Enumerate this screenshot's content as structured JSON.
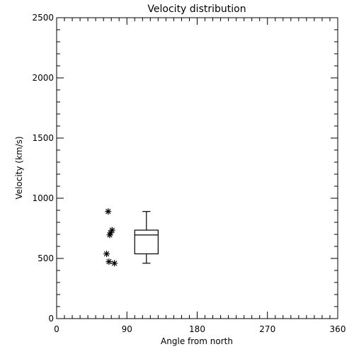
{
  "chart_data": {
    "type": "box",
    "title": "Velocity distribution",
    "xlabel": "Angle from north",
    "ylabel": "Velocity (km/s)",
    "xlim": [
      0,
      360
    ],
    "ylim": [
      0,
      2500
    ],
    "x_ticks": [
      0,
      90,
      180,
      270,
      360
    ],
    "y_ticks": [
      0,
      500,
      1000,
      1500,
      2000,
      2500
    ],
    "x_minor_step": 10,
    "y_minor_step": 100,
    "grid": false,
    "legend": "none",
    "points": [
      {
        "x": 66,
        "y": 890
      },
      {
        "x": 71,
        "y": 735
      },
      {
        "x": 69,
        "y": 712
      },
      {
        "x": 68,
        "y": 695
      },
      {
        "x": 64,
        "y": 538
      },
      {
        "x": 67,
        "y": 473
      },
      {
        "x": 74,
        "y": 460
      }
    ],
    "box": {
      "x": 115,
      "half_width_deg": 15,
      "whisker_low": 460,
      "q1": 538,
      "median": 695,
      "q3": 735,
      "whisker_high": 890
    }
  }
}
